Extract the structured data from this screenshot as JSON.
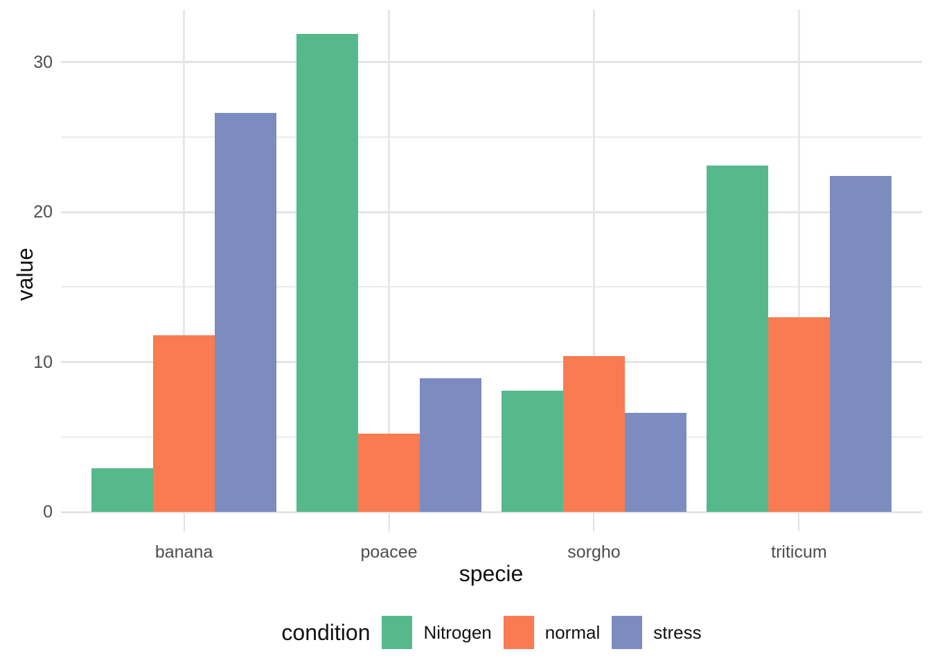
{
  "chart_data": {
    "type": "bar",
    "title": "",
    "xlabel": "specie",
    "ylabel": "value",
    "categories": [
      "banana",
      "poacee",
      "sorgho",
      "triticum"
    ],
    "series": [
      {
        "name": "Nitrogen",
        "color": "#55B98C",
        "values": [
          2.9,
          31.9,
          8.1,
          23.1
        ]
      },
      {
        "name": "normal",
        "color": "#F87B52",
        "values": [
          11.8,
          5.2,
          10.4,
          13.0
        ]
      },
      {
        "name": "stress",
        "color": "#7C8CC0",
        "values": [
          26.6,
          8.9,
          6.6,
          22.4
        ]
      }
    ],
    "yticks": [
      0,
      10,
      20,
      30
    ],
    "yticks_minor": [
      5,
      15,
      25
    ],
    "ylim": [
      0,
      33.5
    ],
    "grid": true,
    "legend_title": "condition",
    "legend_position": "bottom",
    "background": "#FFFFFF",
    "gridline_color": "#E4E4E4",
    "tick_label_color": "#4D4D4D",
    "title_color": "#111111"
  }
}
